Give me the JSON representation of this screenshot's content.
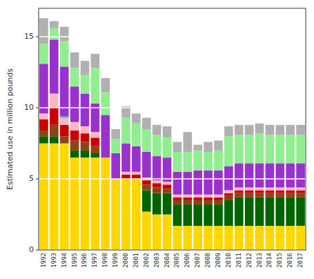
{
  "chart_data": {
    "type": "bar",
    "stacked": true,
    "grid": true,
    "ylabel": "Estimated use in million pounds",
    "categories": [
      "1992",
      "1993",
      "1994",
      "1995",
      "1996",
      "1997",
      "1998",
      "1999",
      "2000",
      "2001",
      "2002",
      "2003",
      "2004",
      "2005",
      "2006",
      "2007",
      "2008",
      "2009",
      "2010",
      "2011",
      "2012",
      "2013",
      "2014",
      "2015",
      "2016",
      "2017"
    ],
    "ylim": [
      0,
      17
    ],
    "yticks": [
      0,
      5,
      10,
      15
    ],
    "series": [
      {
        "color": "#FFD700",
        "values": [
          7.5,
          7.5,
          7.5,
          6.5,
          6.5,
          6.5,
          6.5,
          5.0,
          5.0,
          5.0,
          2.7,
          2.5,
          2.5,
          1.7,
          1.7,
          1.7,
          1.7,
          1.7,
          1.7,
          1.7,
          1.7,
          1.7,
          1.7,
          1.7,
          1.7,
          1.7
        ]
      },
      {
        "color": "#006400",
        "values": [
          0.5,
          0.5,
          0.0,
          0.5,
          0.5,
          0.3,
          0.0,
          0.0,
          0.0,
          0.0,
          1.5,
          1.5,
          1.5,
          1.5,
          1.5,
          1.5,
          1.5,
          1.5,
          1.8,
          2.0,
          2.0,
          2.0,
          2.0,
          2.0,
          2.0,
          2.0
        ]
      },
      {
        "color": "#8B4513",
        "values": [
          0.4,
          0.8,
          0.5,
          0.7,
          0.6,
          0.5,
          0.0,
          0.0,
          0.0,
          0.0,
          0.4,
          0.4,
          0.3,
          0.3,
          0.3,
          0.3,
          0.3,
          0.3,
          0.3,
          0.3,
          0.3,
          0.3,
          0.3,
          0.3,
          0.3,
          0.3
        ]
      },
      {
        "color": "#CC0000",
        "values": [
          0.8,
          1.2,
          0.8,
          0.7,
          0.6,
          0.6,
          0.0,
          0.0,
          0.3,
          0.3,
          0.3,
          0.3,
          0.3,
          0.2,
          0.2,
          0.2,
          0.2,
          0.2,
          0.2,
          0.2,
          0.2,
          0.2,
          0.2,
          0.2,
          0.2,
          0.2
        ]
      },
      {
        "color": "#FFB6C1",
        "values": [
          0.4,
          1.0,
          0.5,
          0.6,
          0.5,
          0.4,
          0.0,
          0.0,
          0.2,
          0.2,
          0.2,
          0.2,
          0.2,
          0.2,
          0.2,
          0.2,
          0.2,
          0.2,
          0.2,
          0.2,
          0.2,
          0.2,
          0.2,
          0.2,
          0.2,
          0.2
        ]
      },
      {
        "color": "#00CCDD",
        "values": [
          0.0,
          0.0,
          0.1,
          0.0,
          0.0,
          0.0,
          0.0,
          0.0,
          0.0,
          0.0,
          0.0,
          0.0,
          0.0,
          0.0,
          0.0,
          0.0,
          0.0,
          0.0,
          0.0,
          0.0,
          0.0,
          0.0,
          0.0,
          0.0,
          0.0,
          0.0
        ]
      },
      {
        "color": "#9932CC",
        "values": [
          3.5,
          3.8,
          3.5,
          2.5,
          2.3,
          2.0,
          3.0,
          1.8,
          2.0,
          1.8,
          1.8,
          1.7,
          1.7,
          1.6,
          1.6,
          1.7,
          1.7,
          1.7,
          1.7,
          1.7,
          1.7,
          1.7,
          1.7,
          1.7,
          1.7,
          1.7
        ]
      },
      {
        "color": "#90EE90",
        "values": [
          1.4,
          0.8,
          1.8,
          1.3,
          1.3,
          2.5,
          1.6,
          1.0,
          1.8,
          1.6,
          1.6,
          1.5,
          1.4,
          1.4,
          1.4,
          1.4,
          1.3,
          1.4,
          2.1,
          2.0,
          2.0,
          2.1,
          2.0,
          2.0,
          2.0,
          2.0
        ]
      },
      {
        "color": "#B0B0B0",
        "values": [
          1.8,
          0.5,
          1.0,
          1.1,
          1.0,
          1.0,
          1.0,
          0.7,
          0.8,
          0.7,
          0.8,
          0.7,
          0.8,
          0.7,
          1.4,
          0.4,
          0.7,
          0.7,
          0.7,
          0.7,
          0.7,
          0.7,
          0.7,
          0.7,
          0.7,
          0.7
        ]
      }
    ]
  }
}
